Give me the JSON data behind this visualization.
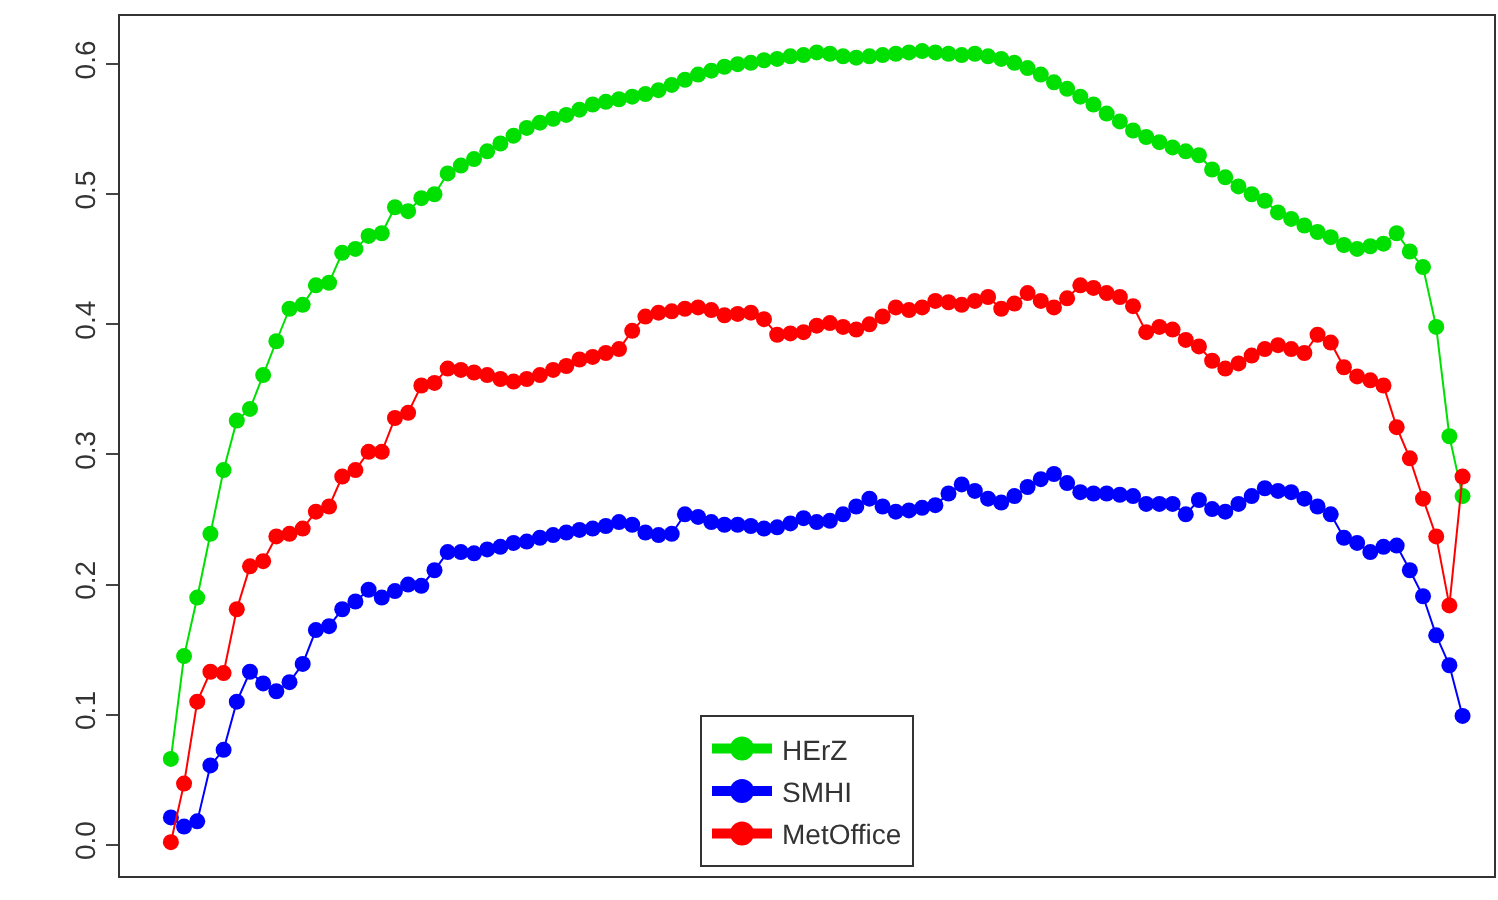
{
  "chart_data": {
    "type": "line",
    "categories": [
      null,
      null,
      null,
      null,
      null,
      null,
      null,
      null,
      null,
      null,
      null,
      null,
      null,
      null,
      null,
      null,
      null,
      null,
      null,
      null,
      null,
      null,
      null,
      null,
      null,
      null,
      null,
      null,
      null,
      null,
      null,
      null,
      null,
      null,
      null,
      null,
      null,
      null,
      null,
      null,
      null,
      null,
      null,
      null,
      null,
      null,
      null,
      null,
      null,
      null,
      null,
      null,
      null,
      null,
      null,
      null,
      null,
      null,
      null,
      null,
      null,
      null,
      null,
      null,
      null,
      null,
      null,
      null,
      null,
      null,
      null,
      null,
      null,
      null,
      null,
      null,
      null,
      null,
      null,
      null,
      null,
      null,
      null,
      null,
      null,
      null,
      null,
      null,
      null,
      null,
      null,
      null,
      null,
      null,
      null,
      null,
      null,
      null,
      null
    ],
    "series": [
      {
        "name": "HErZ",
        "color": "#00e000",
        "values": [
          0.066,
          0.145,
          0.19,
          0.239,
          0.288,
          0.326,
          0.335,
          0.361,
          0.387,
          0.412,
          0.415,
          0.43,
          0.432,
          0.455,
          0.458,
          0.468,
          0.47,
          0.49,
          0.487,
          0.497,
          0.5,
          0.516,
          0.522,
          0.527,
          0.533,
          0.539,
          0.545,
          0.551,
          0.555,
          0.558,
          0.561,
          0.565,
          0.569,
          0.571,
          0.573,
          0.575,
          0.577,
          0.58,
          0.584,
          0.588,
          0.592,
          0.595,
          0.598,
          0.6,
          0.601,
          0.603,
          0.604,
          0.606,
          0.607,
          0.609,
          0.608,
          0.606,
          0.605,
          0.606,
          0.607,
          0.608,
          0.609,
          0.61,
          0.609,
          0.608,
          0.607,
          0.608,
          0.606,
          0.604,
          0.601,
          0.597,
          0.592,
          0.586,
          0.581,
          0.575,
          0.569,
          0.562,
          0.556,
          0.549,
          0.544,
          0.54,
          0.536,
          0.533,
          0.53,
          0.519,
          0.513,
          0.506,
          0.5,
          0.495,
          0.486,
          0.481,
          0.476,
          0.471,
          0.467,
          0.461,
          0.458,
          0.46,
          0.462,
          0.47,
          0.456,
          0.444,
          0.398,
          0.314,
          0.268
        ]
      },
      {
        "name": "SMHI",
        "color": "#0000ff",
        "values": [
          0.021,
          0.014,
          0.018,
          0.061,
          0.073,
          0.11,
          0.133,
          0.124,
          0.118,
          0.125,
          0.139,
          0.165,
          0.168,
          0.181,
          0.187,
          0.196,
          0.19,
          0.195,
          0.2,
          0.199,
          0.211,
          0.225,
          0.225,
          0.224,
          0.227,
          0.229,
          0.232,
          0.233,
          0.236,
          0.238,
          0.24,
          0.242,
          0.243,
          0.245,
          0.248,
          0.246,
          0.24,
          0.238,
          0.239,
          0.254,
          0.252,
          0.248,
          0.246,
          0.246,
          0.245,
          0.243,
          0.244,
          0.247,
          0.251,
          0.248,
          0.249,
          0.254,
          0.26,
          0.266,
          0.26,
          0.256,
          0.257,
          0.259,
          0.261,
          0.27,
          0.277,
          0.272,
          0.266,
          0.263,
          0.268,
          0.275,
          0.281,
          0.285,
          0.278,
          0.271,
          0.27,
          0.27,
          0.269,
          0.268,
          0.262,
          0.262,
          0.262,
          0.254,
          0.265,
          0.258,
          0.256,
          0.262,
          0.268,
          0.274,
          0.272,
          0.271,
          0.266,
          0.26,
          0.254,
          0.236,
          0.232,
          0.225,
          0.229,
          0.23,
          0.211,
          0.191,
          0.161,
          0.138,
          0.099
        ]
      },
      {
        "name": "MetOffice",
        "color": "#ff0000",
        "values": [
          0.002,
          0.047,
          0.11,
          0.133,
          0.132,
          0.181,
          0.214,
          0.218,
          0.237,
          0.239,
          0.243,
          0.256,
          0.26,
          0.283,
          0.288,
          0.302,
          0.302,
          0.328,
          0.332,
          0.353,
          0.355,
          0.366,
          0.365,
          0.363,
          0.361,
          0.358,
          0.356,
          0.358,
          0.361,
          0.365,
          0.368,
          0.373,
          0.375,
          0.378,
          0.381,
          0.395,
          0.406,
          0.409,
          0.41,
          0.412,
          0.413,
          0.411,
          0.407,
          0.408,
          0.409,
          0.404,
          0.392,
          0.393,
          0.394,
          0.399,
          0.401,
          0.398,
          0.396,
          0.4,
          0.406,
          0.413,
          0.411,
          0.413,
          0.418,
          0.417,
          0.415,
          0.418,
          0.421,
          0.412,
          0.416,
          0.424,
          0.418,
          0.413,
          0.42,
          0.43,
          0.428,
          0.424,
          0.421,
          0.414,
          0.394,
          0.398,
          0.396,
          0.388,
          0.383,
          0.372,
          0.366,
          0.37,
          0.376,
          0.381,
          0.384,
          0.381,
          0.378,
          0.392,
          0.386,
          0.367,
          0.36,
          0.357,
          0.353,
          0.321,
          0.297,
          0.266,
          0.237,
          0.184,
          0.283
        ]
      }
    ],
    "ylim": [
      -0.024,
      0.637
    ],
    "yticks": [
      {
        "value": 0,
        "label": "0.0"
      },
      0.1,
      0.2,
      0.3,
      0.4,
      0.5,
      0.6
    ],
    "marker": "circle",
    "line_style": "solid",
    "legend": "bottom"
  }
}
